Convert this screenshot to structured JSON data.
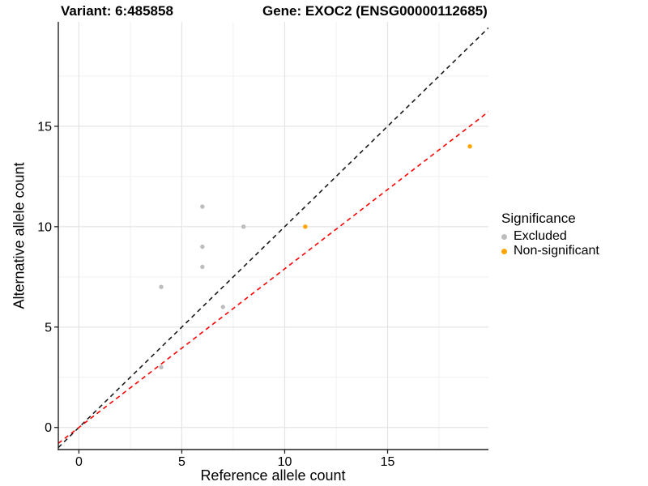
{
  "header": {
    "title_left": "Variant: 6:485858",
    "title_right": "Gene: EXOC2 (ENSG00000112685)"
  },
  "chart_data": {
    "type": "scatter",
    "title_left": "Variant: 6:485858",
    "title_right": "Gene: EXOC2 (ENSG00000112685)",
    "xlabel": "Reference allele count",
    "ylabel": "Alternative allele count",
    "xlim": [
      -1.0,
      19.9
    ],
    "ylim": [
      -1.1,
      20.2
    ],
    "xticks": [
      0,
      5,
      10,
      15
    ],
    "yticks": [
      0,
      5,
      10,
      15
    ],
    "x_minor_breaks": [
      2.5,
      7.5,
      12.5,
      17.5
    ],
    "y_minor_breaks": [
      2.5,
      7.5,
      12.5,
      17.5
    ],
    "grid": true,
    "series": [
      {
        "name": "Excluded",
        "color": "#BDBDBD",
        "points": [
          [
            4,
            3
          ],
          [
            4,
            7
          ],
          [
            6,
            8
          ],
          [
            6,
            9
          ],
          [
            6,
            11
          ],
          [
            7,
            6
          ],
          [
            8,
            10
          ]
        ]
      },
      {
        "name": "Non-significant",
        "color": "#FFA500",
        "points": [
          [
            11,
            10
          ],
          [
            19,
            14
          ]
        ]
      }
    ],
    "lines": [
      {
        "name": "identity-line",
        "slope": 1.0,
        "intercept": 0.0,
        "color": "#1A1A1A",
        "style": "dashed"
      },
      {
        "name": "fit-line",
        "slope": 0.79,
        "intercept": 0.0,
        "color": "#FF0000",
        "style": "dashed"
      }
    ],
    "legend": {
      "title": "Significance",
      "position": "right",
      "items": [
        {
          "label": "Excluded",
          "color": "#BDBDBD"
        },
        {
          "label": "Non-significant",
          "color": "#FFA500"
        }
      ]
    },
    "colors": {
      "background": "#FFFFFF",
      "grid_major": "#E4E4E4",
      "grid_minor": "#F0F0F0",
      "axis_line": "#222222",
      "text": "#000000"
    }
  }
}
